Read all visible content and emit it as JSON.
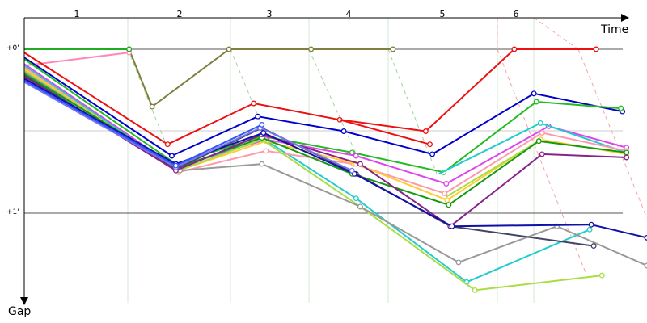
{
  "chart_data": {
    "type": "line",
    "x_axis_label": "Time",
    "y_axis_label": "Gap",
    "lap_labels": [
      "1",
      "2",
      "3",
      "4",
      "5",
      "6"
    ],
    "y_ticks": [
      {
        "value": 0,
        "label": "+0'"
      },
      {
        "value": 1,
        "label": "+1'"
      }
    ],
    "grid": true,
    "y_range": [
      -0.05,
      1.6
    ],
    "x_range": [
      0,
      7.6
    ],
    "series": [
      {
        "color": "#7f7f3f",
        "points": [
          [
            0.0,
            0.0
          ],
          [
            1.28,
            0.0
          ],
          [
            1.56,
            0.35
          ],
          [
            2.5,
            0.0
          ],
          [
            3.5,
            0.0
          ],
          [
            4.5,
            0.0
          ]
        ]
      },
      {
        "color": "#ff88bb",
        "points": [
          [
            0.0,
            0.1
          ],
          [
            1.28,
            0.02
          ]
        ]
      },
      {
        "color": "#22aa22",
        "points": [
          [
            0.0,
            0.0
          ],
          [
            1.28,
            0.0
          ]
        ]
      },
      {
        "color": "#ee1111",
        "points": [
          [
            0.0,
            0.02
          ],
          [
            1.75,
            0.58
          ],
          [
            2.8,
            0.33
          ],
          [
            3.85,
            0.43
          ],
          [
            4.9,
            0.5
          ],
          [
            5.98,
            0.0
          ],
          [
            6.98,
            0.0
          ]
        ]
      },
      {
        "color": "#ee1111",
        "points": [
          [
            3.85,
            0.43
          ],
          [
            4.95,
            0.58
          ]
        ]
      },
      {
        "color": "#0000cc",
        "points": [
          [
            0.0,
            0.05
          ],
          [
            1.8,
            0.65
          ],
          [
            2.85,
            0.41
          ],
          [
            3.9,
            0.5
          ],
          [
            4.98,
            0.64
          ],
          [
            6.22,
            0.27
          ],
          [
            7.3,
            0.38
          ]
        ]
      },
      {
        "color": "#22bb22",
        "points": [
          [
            0.0,
            0.06
          ],
          [
            1.85,
            0.7
          ],
          [
            2.9,
            0.53
          ],
          [
            4.0,
            0.63
          ],
          [
            5.12,
            0.75
          ],
          [
            6.25,
            0.32
          ],
          [
            7.28,
            0.36
          ]
        ]
      },
      {
        "color": "#dd44ee",
        "points": [
          [
            0.0,
            0.09
          ],
          [
            1.85,
            0.72
          ],
          [
            2.95,
            0.55
          ],
          [
            4.05,
            0.65
          ],
          [
            5.15,
            0.82
          ],
          [
            6.4,
            0.47
          ],
          [
            7.35,
            0.6
          ]
        ]
      },
      {
        "color": "#22cccc",
        "points": [
          [
            0.0,
            0.1
          ],
          [
            1.85,
            0.73
          ],
          [
            2.9,
            0.54
          ],
          [
            4.05,
            0.91
          ],
          [
            5.4,
            1.42
          ],
          [
            6.9,
            1.1
          ]
        ]
      },
      {
        "color": "#22cccc",
        "points": [
          [
            5.06,
            0.76
          ],
          [
            6.3,
            0.45
          ],
          [
            7.35,
            0.63
          ]
        ]
      },
      {
        "color": "#ff99aa",
        "points": [
          [
            0.0,
            0.11
          ],
          [
            1.88,
            0.75
          ],
          [
            2.95,
            0.62
          ],
          [
            4.02,
            0.7
          ],
          [
            5.13,
            0.88
          ],
          [
            6.32,
            0.51
          ],
          [
            7.35,
            0.62
          ]
        ]
      },
      {
        "color": "#ffcc33",
        "points": [
          [
            0.0,
            0.12
          ],
          [
            1.88,
            0.74
          ],
          [
            2.95,
            0.56
          ],
          [
            4.05,
            0.7
          ],
          [
            5.16,
            0.92
          ],
          [
            6.3,
            0.55
          ],
          [
            7.35,
            0.64
          ]
        ]
      },
      {
        "color": "#aadd44",
        "points": [
          [
            0.0,
            0.13
          ],
          [
            1.88,
            0.74
          ],
          [
            2.9,
            0.55
          ],
          [
            4.1,
            0.96
          ],
          [
            5.5,
            1.47
          ],
          [
            7.05,
            1.38
          ]
        ]
      },
      {
        "color": "#aadd44",
        "points": [
          [
            5.15,
            0.9
          ],
          [
            6.28,
            0.56
          ]
        ]
      },
      {
        "color": "#999999",
        "points": [
          [
            0.0,
            0.14
          ],
          [
            1.9,
            0.74
          ],
          [
            2.9,
            0.7
          ],
          [
            4.1,
            0.96
          ],
          [
            5.3,
            1.3
          ],
          [
            6.5,
            1.08
          ],
          [
            7.6,
            1.32
          ]
        ]
      },
      {
        "color": "#119911",
        "points": [
          [
            0.0,
            0.15
          ],
          [
            1.88,
            0.72
          ],
          [
            2.9,
            0.54
          ],
          [
            4.0,
            0.76
          ],
          [
            5.18,
            0.95
          ],
          [
            6.28,
            0.56
          ],
          [
            7.35,
            0.63
          ]
        ]
      },
      {
        "color": "#444466",
        "points": [
          [
            0.0,
            0.16
          ],
          [
            1.85,
            0.73
          ],
          [
            2.9,
            0.48
          ],
          [
            4.05,
            0.76
          ],
          [
            5.2,
            1.08
          ],
          [
            6.95,
            1.2
          ]
        ]
      },
      {
        "color": "#882288",
        "points": [
          [
            0.0,
            0.17
          ],
          [
            1.85,
            0.74
          ],
          [
            2.9,
            0.52
          ],
          [
            4.1,
            0.7
          ],
          [
            5.2,
            1.08
          ],
          [
            6.32,
            0.64
          ],
          [
            7.35,
            0.66
          ]
        ]
      },
      {
        "color": "#1111aa",
        "points": [
          [
            0.0,
            0.18
          ],
          [
            1.85,
            0.7
          ],
          [
            2.92,
            0.51
          ],
          [
            4.03,
            0.76
          ],
          [
            5.22,
            1.08
          ],
          [
            6.92,
            1.07
          ],
          [
            7.6,
            1.15
          ]
        ]
      },
      {
        "color": "#7777ee",
        "points": [
          [
            0.0,
            0.2
          ],
          [
            1.85,
            0.72
          ],
          [
            2.88,
            0.48
          ],
          [
            4.0,
            0.74
          ]
        ]
      },
      {
        "color": "#3355ff",
        "points": [
          [
            0.0,
            0.19
          ],
          [
            1.85,
            0.71
          ],
          [
            2.9,
            0.46
          ]
        ]
      }
    ]
  }
}
